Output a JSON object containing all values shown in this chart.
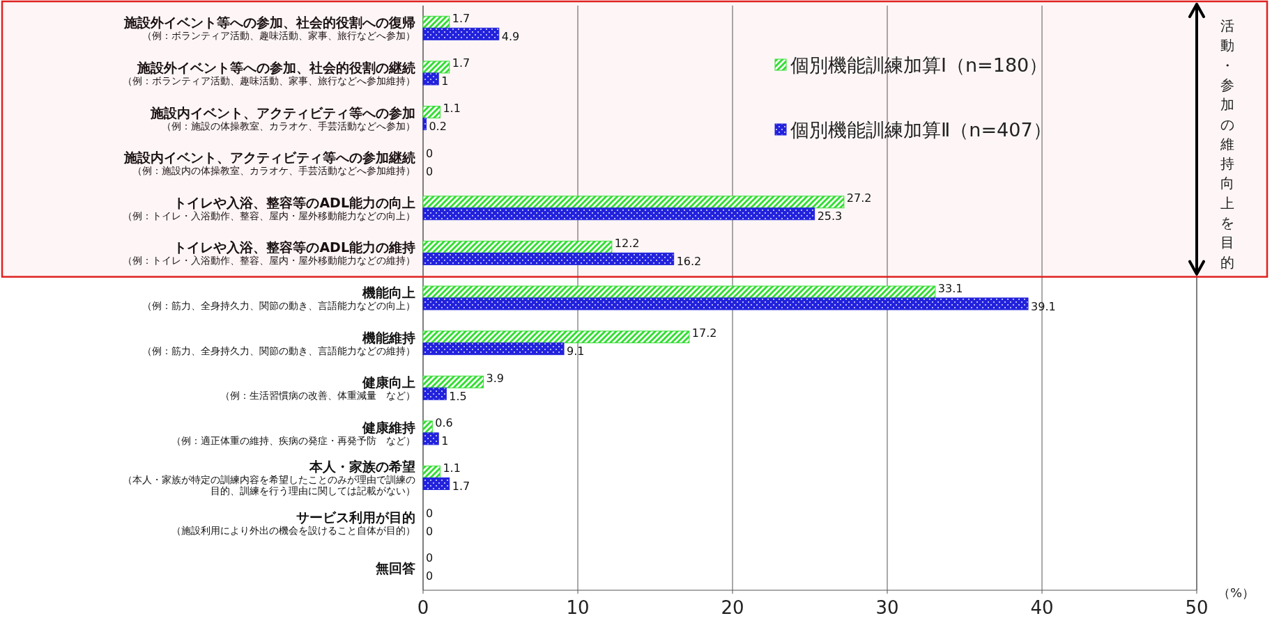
{
  "chart_data": {
    "type": "bar",
    "orientation": "horizontal",
    "categories": [
      "施設外イベント等への参加、社会的役割への復帰（例：ボランティア活動、趣味活動、家事、旅行などへ参加）",
      "施設外イベント等への参加、社会的役割の継続（例：ボランティア活動、趣味活動、家事、旅行などへ参加維持）",
      "施設内イベント、アクティビティ等への参加（例：施設の体操教室、カラオケ、手芸活動などへ参加）",
      "施設内イベント、アクティビティ等への参加継続（例：施設内の体操教室、カラオケ、手芸活動などへ参加維持）",
      "トイレや入浴、整容等のADL能力の向上（例：トイレ・入浴動作、整容、屋内・屋外移動能力などの向上）",
      "トイレや入浴、整容等のADL能力の維持（例：トイレ・入浴動作、整容、屋内・屋外移動能力などの維持）",
      "機能向上（例：筋力、全身持久力、関節の動き、言語能力などの向上）",
      "機能維持（例：筋力、全身持久力、関節の動き、言語能力などの維持）",
      "健康向上（例：生活習慣病の改善、体重減量　など）",
      "健康維持（例：適正体重の維持、疾病の発症・再発予防　など）",
      "本人・家族の希望（本人・家族が特定の訓練内容を希望したことのみが理由で訓練の目的、訓練を行う理由に関しては記載がない）",
      "サービス利用が目的（施設利用により外出の機会を設けること自体が目的）",
      "無回答"
    ],
    "series": [
      {
        "name": "個別機能訓練加算Ⅰ（n=180）",
        "color": "#33dd33",
        "values": [
          1.7,
          1.7,
          1.1,
          0,
          27.2,
          12.2,
          33.1,
          17.2,
          3.9,
          0.6,
          1.1,
          0,
          0
        ]
      },
      {
        "name": "個別機能訓練加算Ⅱ（n=407）",
        "color": "#2222dd",
        "values": [
          4.9,
          1,
          0.2,
          0,
          25.3,
          16.2,
          39.1,
          9.1,
          1.5,
          1,
          1.7,
          0,
          0
        ]
      }
    ],
    "xlim": [
      0,
      50
    ],
    "xticks": [
      0,
      10,
      20,
      30,
      40,
      50
    ],
    "xlabel": "（%）",
    "grid": "x",
    "legend": "top right",
    "data_labels": true,
    "bands": [
      {
        "axis": "y",
        "from": "施設外イベント等への参加、社会的役割への復帰（例：ボランティア活動、趣味活動、家事、旅行などへ参加）",
        "to": "トイレや入浴、整容等のADL能力の維持（例：トイレ・入浴動作、整容、屋内・屋外移動能力などの維持）",
        "label": "活動・参加の維持向上を目的",
        "color": "#e02020"
      }
    ]
  }
}
